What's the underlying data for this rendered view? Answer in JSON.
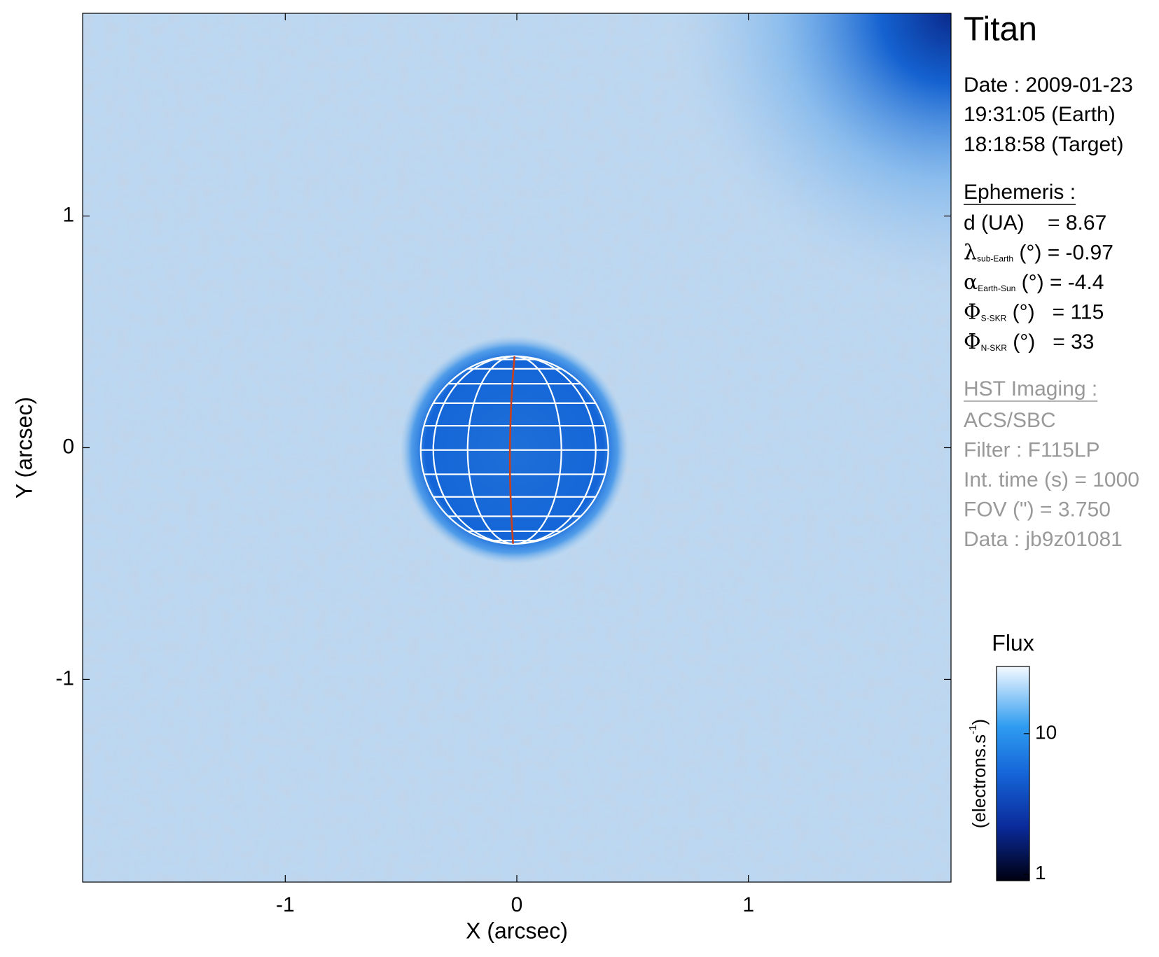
{
  "chart_data": {
    "type": "image",
    "title": "Titan",
    "x_label": "X (arcsec)",
    "y_label": "Y (arcsec)",
    "xlim": [
      -1.875,
      1.875
    ],
    "ylim": [
      -1.875,
      1.875
    ],
    "xticks": [
      -1,
      0,
      1
    ],
    "yticks": [
      -1,
      0,
      1
    ],
    "disk": {
      "x": -0.01,
      "y": -0.01,
      "radius": 0.405
    },
    "colorbar": {
      "title": "Flux",
      "label": "(electrons.s",
      "label_sup": "-1",
      "label_end": ")",
      "scale": "log",
      "lim": [
        0.9,
        30
      ],
      "ticks": [
        1,
        10
      ]
    }
  },
  "info": {
    "date": "Date : 2009-01-23",
    "time_earth": "19:31:05 (Earth)",
    "time_target": "18:18:58 (Target)",
    "ephemeris_title": "Ephemeris :",
    "ephemeris": [
      {
        "text": "d (UA)    = 8.67"
      },
      {
        "symbol": "λ",
        "sub": "sub-Earth",
        "text": " (°) = -0.97"
      },
      {
        "symbol": "α",
        "sub": "Earth-Sun",
        "text": " (°) = -4.4"
      },
      {
        "symbol": "Φ",
        "sub": "S-SKR",
        "text": " (°)   = 115"
      },
      {
        "symbol": "Φ",
        "sub": "N-SKR",
        "text": " (°)   = 33"
      }
    ],
    "hst_title": "HST Imaging :",
    "hst": [
      "ACS/SBC",
      "Filter : F115LP",
      "Int. time (s) = 1000",
      "FOV (\") = 3.750",
      "Data : jb9z01081"
    ]
  }
}
